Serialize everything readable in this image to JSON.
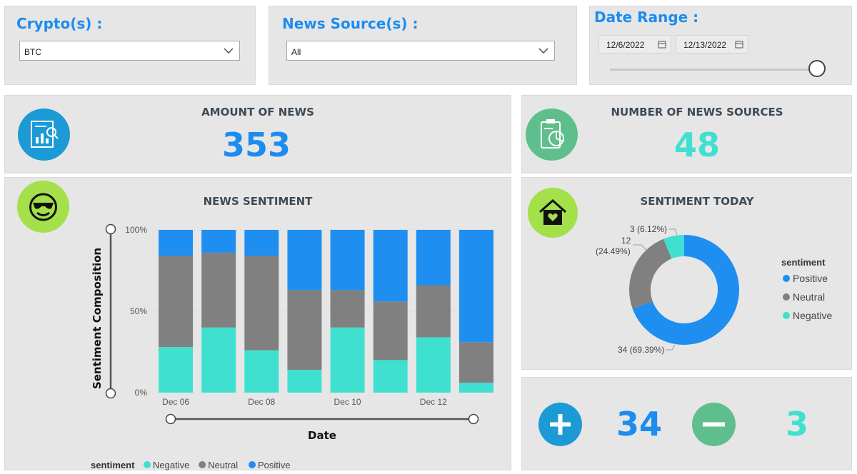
{
  "filters": {
    "crypto": {
      "title": "Crypto(s) :",
      "value": "BTC"
    },
    "news_source": {
      "title": "News Source(s) :",
      "value": "All"
    },
    "date_range": {
      "title": "Date Range :",
      "start": "12/6/2022",
      "end": "12/13/2022",
      "slider_position": 1.0
    }
  },
  "kpis": {
    "amount_of_news": {
      "label": "AMOUNT OF NEWS",
      "value": "353",
      "color": "#1c8cf0"
    },
    "number_of_sources": {
      "label": "NUMBER OF NEWS SOURCES",
      "value": "48",
      "color": "#40e0d0"
    }
  },
  "sentiment_chart": {
    "title": "NEWS SENTIMENT",
    "legend_title": "sentiment"
  },
  "today_chart": {
    "title": "SENTIMENT TODAY",
    "legend_title": "sentiment"
  },
  "counts": {
    "positive": "34",
    "negative": "3"
  },
  "colors": {
    "positive": "#1f8ef1",
    "neutral": "#808080",
    "negative": "#40e0d0",
    "panel": "#e6e6e6",
    "icon_blue": "#1c9ad6",
    "icon_green": "#5fbf8c",
    "icon_lime": "#a4e04a"
  },
  "icons": [
    "report-chart-icon",
    "clipboard-chart-icon",
    "sunglasses-face-icon",
    "home-heart-icon",
    "plus-icon",
    "minus-icon"
  ],
  "chart_data": [
    {
      "type": "bar",
      "stacked": "percent",
      "title": "NEWS SENTIMENT",
      "xlabel": "Date",
      "ylabel": "Sentiment Composition",
      "ylim": [
        0,
        100
      ],
      "yticks": [
        "0%",
        "50%",
        "100%"
      ],
      "xtick_labels": [
        "Dec 06",
        "Dec 08",
        "Dec 10",
        "Dec 12"
      ],
      "categories": [
        "Dec 06",
        "Dec 07",
        "Dec 08",
        "Dec 09",
        "Dec 10",
        "Dec 11",
        "Dec 12",
        "Dec 13"
      ],
      "series": [
        {
          "name": "Negative",
          "color": "#40e0d0",
          "values": [
            28,
            40,
            26,
            14,
            40,
            20,
            34,
            6
          ]
        },
        {
          "name": "Neutral",
          "color": "#808080",
          "values": [
            56,
            46,
            58,
            49,
            23,
            36,
            32,
            25
          ]
        },
        {
          "name": "Positive",
          "color": "#1f8ef1",
          "values": [
            16,
            14,
            16,
            37,
            37,
            44,
            34,
            69
          ]
        }
      ],
      "legend_position": "bottom-left",
      "grid": true
    },
    {
      "type": "pie",
      "donut": true,
      "title": "SENTIMENT TODAY",
      "slices": [
        {
          "name": "Positive",
          "value": 34,
          "percent": 69.39,
          "label": "34 (69.39%)",
          "color": "#1f8ef1"
        },
        {
          "name": "Neutral",
          "value": 12,
          "percent": 24.49,
          "label_count": "12",
          "label_pct": "(24.49%)",
          "color": "#808080"
        },
        {
          "name": "Negative",
          "value": 3,
          "percent": 6.12,
          "label": "3 (6.12%)",
          "color": "#40e0d0"
        }
      ],
      "legend_position": "right"
    }
  ]
}
